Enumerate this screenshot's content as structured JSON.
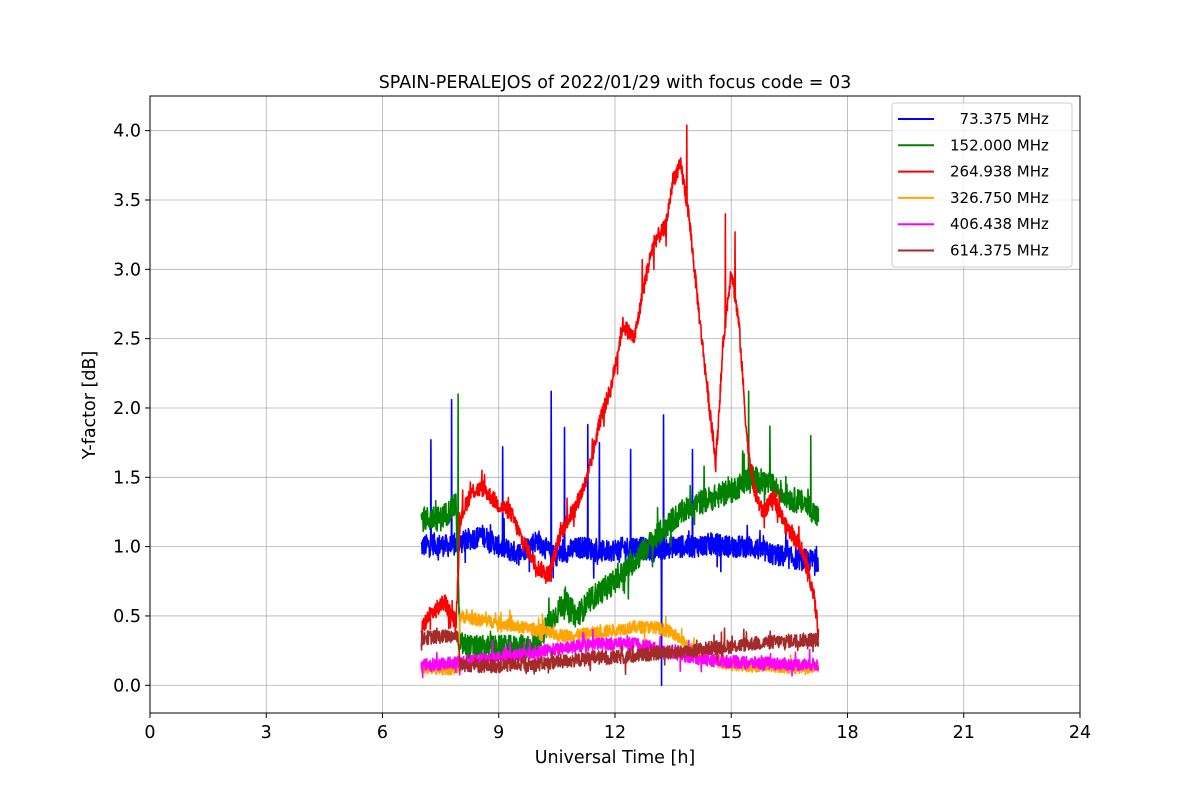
{
  "chart_data": {
    "type": "line",
    "title": "SPAIN-PERALEJOS of 2022/01/29 with focus code = 03",
    "xlabel": "Universal Time [h]",
    "ylabel": "Y-factor [dB]",
    "xlim": [
      0,
      24
    ],
    "ylim": [
      -0.2,
      4.25
    ],
    "xticks": [
      0,
      3,
      6,
      9,
      12,
      15,
      18,
      21,
      24
    ],
    "yticks": [
      0.0,
      0.5,
      1.0,
      1.5,
      2.0,
      2.5,
      3.0,
      3.5,
      4.0
    ],
    "ytick_labels": [
      "0.0",
      "0.5",
      "1.0",
      "1.5",
      "2.0",
      "2.5",
      "3.0",
      "3.5",
      "4.0"
    ],
    "grid": true,
    "legend_position": "top-right",
    "series": [
      {
        "name": "  73.375 MHz",
        "color": "#0000ff",
        "noise": 0.08,
        "x": [
          7.0,
          7.3,
          7.8,
          8.2,
          8.6,
          9.0,
          9.5,
          10.0,
          10.4,
          10.8,
          11.2,
          11.6,
          12.0,
          12.5,
          13.0,
          13.5,
          14.0,
          14.5,
          15.0,
          15.5,
          16.0,
          16.5,
          17.0,
          17.25
        ],
        "y": [
          1.0,
          1.02,
          1.0,
          1.05,
          1.08,
          1.0,
          0.95,
          1.05,
          0.93,
          0.97,
          1.0,
          0.96,
          0.98,
          1.0,
          0.97,
          1.0,
          1.0,
          1.02,
          1.0,
          1.0,
          0.95,
          0.92,
          0.9,
          0.9
        ],
        "spikes": [
          [
            7.25,
            1.77
          ],
          [
            7.78,
            2.06
          ],
          [
            9.1,
            1.72
          ],
          [
            10.35,
            2.12
          ],
          [
            10.7,
            1.86
          ],
          [
            11.3,
            1.88
          ],
          [
            11.6,
            1.75
          ],
          [
            12.4,
            1.7
          ],
          [
            13.25,
            1.95
          ],
          [
            13.2,
            0.0
          ],
          [
            14.0,
            1.7
          ]
        ]
      },
      {
        "name": "152.000 MHz",
        "color": "#008000",
        "noise": 0.09,
        "x": [
          7.0,
          7.5,
          7.9,
          8.0,
          8.3,
          9.0,
          9.5,
          10.0,
          10.3,
          10.7,
          11.0,
          11.5,
          12.0,
          12.5,
          13.0,
          13.5,
          14.0,
          14.5,
          15.0,
          15.5,
          16.0,
          16.5,
          17.0,
          17.25
        ],
        "y": [
          1.2,
          1.2,
          1.3,
          0.3,
          0.27,
          0.27,
          0.27,
          0.3,
          0.45,
          0.6,
          0.5,
          0.65,
          0.75,
          0.9,
          1.05,
          1.2,
          1.3,
          1.35,
          1.4,
          1.5,
          1.45,
          1.35,
          1.3,
          1.2
        ],
        "spikes": [
          [
            7.95,
            2.1
          ],
          [
            15.45,
            2.12
          ],
          [
            16.0,
            1.87
          ],
          [
            17.05,
            1.8
          ]
        ]
      },
      {
        "name": "264.938 MHz",
        "color": "#ff0000",
        "noise": 0.06,
        "x": [
          7.0,
          7.2,
          7.6,
          7.9,
          8.0,
          8.3,
          8.6,
          9.0,
          9.3,
          9.6,
          10.0,
          10.3,
          10.6,
          11.0,
          11.3,
          11.6,
          11.9,
          12.2,
          12.5,
          12.8,
          13.0,
          13.3,
          13.5,
          13.7,
          13.9,
          14.2,
          14.4,
          14.6,
          14.8,
          15.0,
          15.2,
          15.4,
          15.6,
          15.8,
          16.1,
          16.4,
          16.8,
          17.1,
          17.25
        ],
        "y": [
          0.4,
          0.5,
          0.6,
          0.45,
          1.2,
          1.4,
          1.42,
          1.3,
          1.25,
          1.05,
          0.85,
          0.8,
          1.1,
          1.3,
          1.5,
          1.9,
          2.15,
          2.6,
          2.5,
          2.95,
          3.2,
          3.3,
          3.65,
          3.75,
          3.4,
          2.6,
          2.1,
          1.6,
          2.5,
          3.0,
          2.6,
          1.8,
          1.4,
          1.25,
          1.35,
          1.15,
          1.0,
          0.7,
          0.4
        ],
        "spikes": [
          [
            13.85,
            4.04
          ],
          [
            14.85,
            3.4
          ],
          [
            15.1,
            3.27
          ],
          [
            12.7,
            3.07
          ],
          [
            13.0,
            3.0
          ]
        ]
      },
      {
        "name": "326.750 MHz",
        "color": "#ffa500",
        "noise": 0.045,
        "x": [
          7.0,
          7.5,
          7.95,
          8.0,
          8.5,
          9.0,
          9.5,
          10.0,
          10.5,
          11.0,
          11.5,
          12.0,
          12.5,
          13.0,
          13.5,
          14.0,
          14.5,
          15.0,
          15.5,
          16.0,
          16.5,
          17.0,
          17.25
        ],
        "y": [
          0.12,
          0.12,
          0.12,
          0.5,
          0.47,
          0.45,
          0.42,
          0.4,
          0.36,
          0.36,
          0.38,
          0.4,
          0.42,
          0.42,
          0.38,
          0.25,
          0.18,
          0.15,
          0.14,
          0.14,
          0.13,
          0.13,
          0.13
        ],
        "spikes": []
      },
      {
        "name": "406.438 MHz",
        "color": "#ff00ff",
        "noise": 0.045,
        "x": [
          7.0,
          7.5,
          8.0,
          8.5,
          9.0,
          9.5,
          10.0,
          10.5,
          11.0,
          11.5,
          12.0,
          12.5,
          13.0,
          13.5,
          14.0,
          14.5,
          15.0,
          15.5,
          16.0,
          16.5,
          17.0,
          17.25
        ],
        "y": [
          0.15,
          0.15,
          0.17,
          0.18,
          0.2,
          0.22,
          0.24,
          0.26,
          0.28,
          0.3,
          0.3,
          0.3,
          0.27,
          0.23,
          0.2,
          0.18,
          0.17,
          0.16,
          0.16,
          0.15,
          0.15,
          0.15
        ],
        "spikes": []
      },
      {
        "name": "614.375 MHz",
        "color": "#a52a2a",
        "noise": 0.05,
        "x": [
          7.0,
          7.5,
          7.95,
          8.0,
          8.5,
          9.0,
          9.5,
          10.0,
          10.5,
          11.0,
          11.5,
          12.0,
          12.5,
          13.0,
          13.5,
          14.0,
          14.5,
          15.0,
          15.5,
          16.0,
          16.5,
          17.0,
          17.25
        ],
        "y": [
          0.34,
          0.35,
          0.36,
          0.15,
          0.14,
          0.14,
          0.15,
          0.15,
          0.17,
          0.18,
          0.2,
          0.2,
          0.21,
          0.23,
          0.24,
          0.25,
          0.27,
          0.28,
          0.3,
          0.31,
          0.32,
          0.33,
          0.33
        ],
        "spikes": []
      }
    ]
  }
}
